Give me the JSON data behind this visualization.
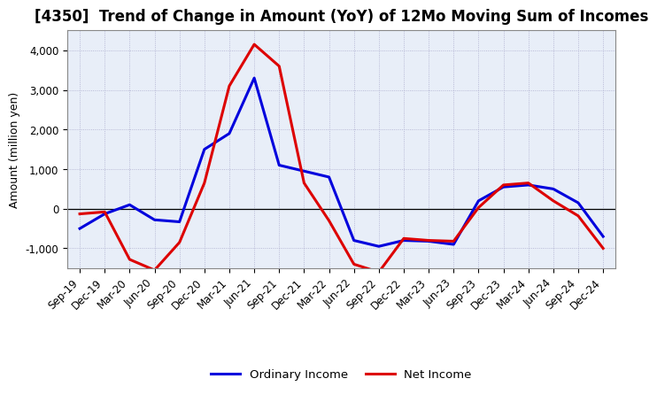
{
  "title": "[4350]  Trend of Change in Amount (YoY) of 12Mo Moving Sum of Incomes",
  "ylabel": "Amount (million yen)",
  "x_labels": [
    "Sep-19",
    "Dec-19",
    "Mar-20",
    "Jun-20",
    "Sep-20",
    "Dec-20",
    "Mar-21",
    "Jun-21",
    "Sep-21",
    "Dec-21",
    "Mar-22",
    "Jun-22",
    "Sep-22",
    "Dec-22",
    "Mar-23",
    "Jun-23",
    "Sep-23",
    "Dec-23",
    "Mar-24",
    "Jun-24",
    "Sep-24",
    "Dec-24"
  ],
  "ordinary_income": [
    -500,
    -130,
    100,
    -280,
    -330,
    1500,
    1900,
    3300,
    1100,
    950,
    800,
    -800,
    -950,
    -800,
    -820,
    -900,
    200,
    550,
    600,
    500,
    150,
    -700
  ],
  "net_income": [
    -130,
    -80,
    -1280,
    -1550,
    -850,
    650,
    3100,
    4150,
    3600,
    650,
    -300,
    -1400,
    -1600,
    -750,
    -800,
    -820,
    30,
    600,
    650,
    200,
    -180,
    -1000
  ],
  "ordinary_income_color": "#0000dd",
  "net_income_color": "#dd0000",
  "background_color": "#ffffff",
  "plot_bg_color": "#e8eef8",
  "grid_color": "#aaaacc",
  "ylim": [
    -1500,
    4500
  ],
  "yticks": [
    -1000,
    0,
    1000,
    2000,
    3000,
    4000
  ],
  "legend_ordinary": "Ordinary Income",
  "legend_net": "Net Income",
  "line_width": 2.2,
  "title_fontsize": 12,
  "axis_fontsize": 9,
  "tick_fontsize": 8.5
}
